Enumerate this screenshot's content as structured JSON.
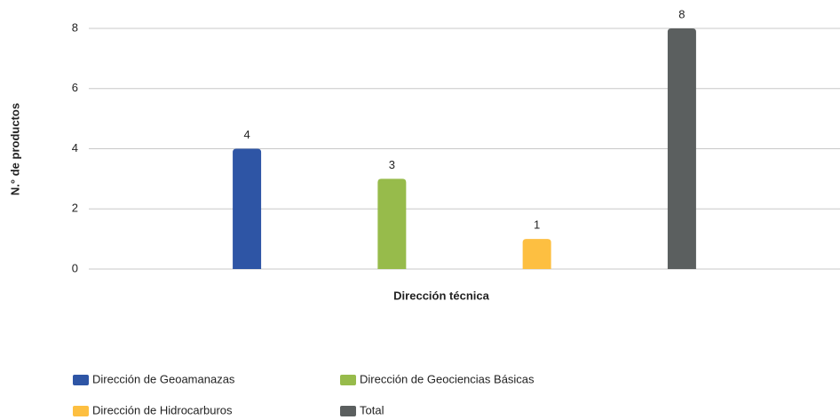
{
  "chart_data": {
    "type": "bar",
    "categories": [
      null
    ],
    "series": [
      {
        "name": "Dirección de Geoamanazas",
        "color": "#2e55a5",
        "values": [
          4
        ]
      },
      {
        "name": "Dirección de Geociencias Básicas",
        "color": "#97bb4b",
        "values": [
          3
        ]
      },
      {
        "name": "Dirección de Hidrocarburos",
        "color": "#fdbf41",
        "values": [
          1
        ]
      },
      {
        "name": "Total",
        "color": "#5b5f5f",
        "values": [
          8
        ]
      }
    ],
    "xlabel": "Dirección técnica",
    "ylabel": "N.° de productos",
    "ylim": [
      0,
      8
    ],
    "yticks": [
      0,
      2,
      4,
      6,
      8
    ],
    "grid": true,
    "legend": "bottom"
  }
}
